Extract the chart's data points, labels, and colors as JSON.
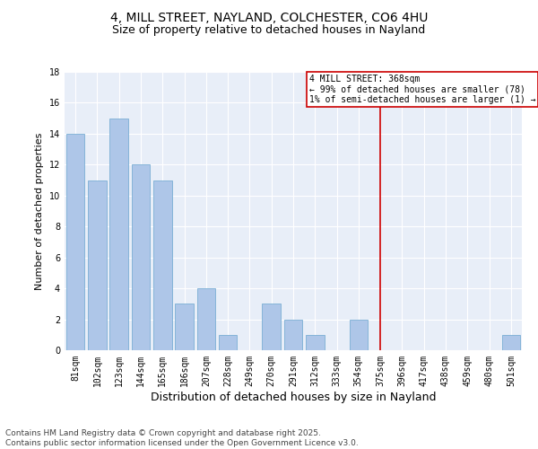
{
  "title": "4, MILL STREET, NAYLAND, COLCHESTER, CO6 4HU",
  "subtitle": "Size of property relative to detached houses in Nayland",
  "xlabel": "Distribution of detached houses by size in Nayland",
  "ylabel": "Number of detached properties",
  "categories": [
    "81sqm",
    "102sqm",
    "123sqm",
    "144sqm",
    "165sqm",
    "186sqm",
    "207sqm",
    "228sqm",
    "249sqm",
    "270sqm",
    "291sqm",
    "312sqm",
    "333sqm",
    "354sqm",
    "375sqm",
    "396sqm",
    "417sqm",
    "438sqm",
    "459sqm",
    "480sqm",
    "501sqm"
  ],
  "values": [
    14,
    11,
    15,
    12,
    11,
    3,
    4,
    1,
    0,
    3,
    2,
    1,
    0,
    2,
    0,
    0,
    0,
    0,
    0,
    0,
    1
  ],
  "bar_color": "#aec6e8",
  "bar_edge_color": "#7aafd4",
  "ylim": [
    0,
    18
  ],
  "yticks": [
    0,
    2,
    4,
    6,
    8,
    10,
    12,
    14,
    16,
    18
  ],
  "vline_x": 14,
  "vline_color": "#cc0000",
  "legend_title": "4 MILL STREET: 368sqm",
  "legend_line1": "← 99% of detached houses are smaller (78)",
  "legend_line2": "1% of semi-detached houses are larger (1) →",
  "legend_box_color": "#cc0000",
  "background_color": "#e8eef8",
  "footer": "Contains HM Land Registry data © Crown copyright and database right 2025.\nContains public sector information licensed under the Open Government Licence v3.0.",
  "title_fontsize": 10,
  "subtitle_fontsize": 9,
  "xlabel_fontsize": 9,
  "ylabel_fontsize": 8,
  "tick_fontsize": 7,
  "footer_fontsize": 6.5,
  "legend_fontsize": 7
}
